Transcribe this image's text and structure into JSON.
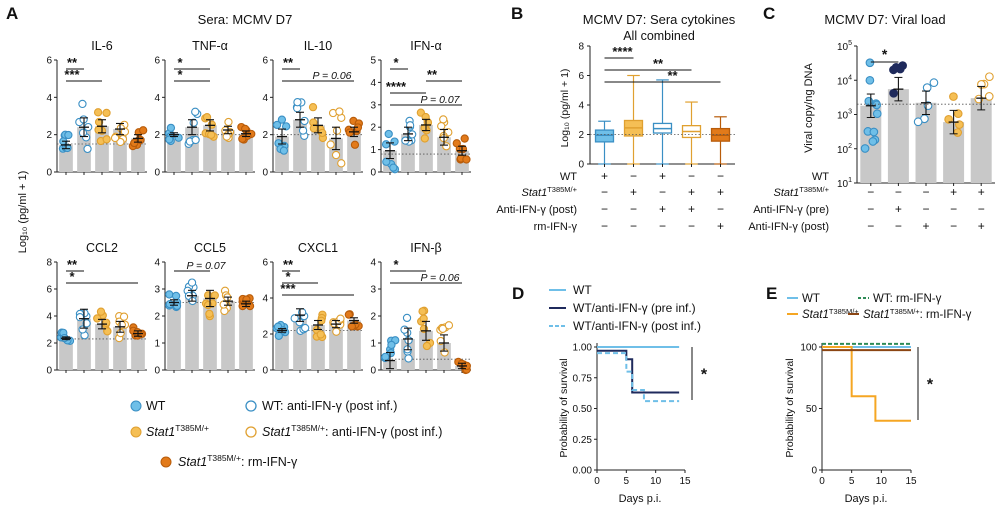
{
  "colors": {
    "wt": "#6fbfe8",
    "wt_edge": "#3a8fc4",
    "stat": "#f5bf55",
    "stat_edge": "#e0a030",
    "rm": "#e27a1a",
    "rm_edge": "#b85c0a",
    "pre": "#1f2a5c",
    "bar": "#c8c8c8",
    "stat_label": "#e05a2b",
    "wt_label": "#2a6fb0"
  },
  "panels": {
    "A": {
      "letter": "A",
      "title": "Sera: MCMV D7",
      "ylabel": "Log₁₀ (pg/ml + 1)"
    },
    "B": {
      "letter": "B",
      "title": "MCMV D7: Sera cytokines"
    },
    "C": {
      "letter": "C",
      "title": "MCMV D7: Viral load"
    },
    "D": {
      "letter": "D"
    },
    "E": {
      "letter": "E"
    }
  },
  "legend_a": {
    "wt": "WT",
    "wt_anti": "WT: anti-IFN-γ (post inf.)",
    "stat": "Stat1",
    "stat_sup": "T385M/+",
    "stat_anti": ": anti-IFN-γ (post inf.)",
    "stat_rm": ": rm-IFN-γ"
  },
  "conditions": {
    "rows": [
      "WT",
      "Stat1",
      "Anti-IFN-γ (post)",
      "rm-IFN-γ"
    ],
    "stat_sup": "T385M/+",
    "b_matrix": [
      [
        "+",
        "−",
        "+",
        "−",
        "−"
      ],
      [
        "−",
        "+",
        "−",
        "+",
        "+"
      ],
      [
        "−",
        "−",
        "+",
        "+",
        "−"
      ],
      [
        "−",
        "−",
        "−",
        "−",
        "+"
      ]
    ],
    "c_rows": [
      "WT",
      "Stat1",
      "Anti-IFN-γ (pre)",
      "Anti-IFN-γ (post)"
    ],
    "c_matrix": [
      [
        "+",
        "+",
        "+",
        "−",
        "−"
      ],
      [
        "−",
        "−",
        "−",
        "+",
        "+"
      ],
      [
        "−",
        "+",
        "−",
        "−",
        "−"
      ],
      [
        "−",
        "−",
        "+",
        "−",
        "+"
      ]
    ]
  },
  "legend_d": [
    "WT",
    "WT/anti-IFN-γ (pre inf.)",
    "WT/anti-IFN-γ (post inf.)"
  ],
  "legend_e": {
    "wt": "WT",
    "stat": "Stat1",
    "stat_sup": "T385M/+",
    "wt_rm": "WT: rm-IFN-γ",
    "stat_rm": ": rm-IFN-γ"
  },
  "chart_data": [
    {
      "type": "bar",
      "panel": "A",
      "title": "IL-6",
      "ylim": [
        0,
        6
      ],
      "yticks": [
        0,
        2,
        4,
        6
      ],
      "groups": [
        "WT",
        "WT: anti-IFN-γ",
        "Stat1 T385M/+",
        "Stat1 T385M/+: anti-IFN-γ",
        "Stat1 T385M/+: rm-IFN-γ"
      ],
      "values": [
        1.45,
        2.4,
        2.45,
        2.3,
        1.8
      ],
      "errors": [
        0.2,
        0.5,
        0.35,
        0.3,
        0.2
      ],
      "dotted": 1.5,
      "annotations": [
        {
          "text": "**",
          "from": 0,
          "to": 1
        },
        {
          "text": "***",
          "from": 0,
          "to": 2
        }
      ]
    },
    {
      "type": "bar",
      "panel": "A",
      "title": "TNF-α",
      "ylim": [
        0,
        6
      ],
      "yticks": [
        0,
        2,
        4,
        6
      ],
      "values": [
        2.0,
        2.4,
        2.5,
        2.25,
        2.05
      ],
      "errors": [
        0.1,
        0.4,
        0.3,
        0.2,
        0.15
      ],
      "dotted": 2.0,
      "annotations": [
        {
          "text": "*",
          "from": 0,
          "to": 2
        },
        {
          "text": "*",
          "from": 0,
          "to": 2
        }
      ]
    },
    {
      "type": "bar",
      "panel": "A",
      "title": "IL-10",
      "ylim": [
        0,
        6
      ],
      "yticks": [
        0,
        2,
        4,
        6
      ],
      "values": [
        1.9,
        2.8,
        2.5,
        1.8,
        2.15
      ],
      "errors": [
        0.4,
        0.4,
        0.4,
        0.6,
        0.25
      ],
      "dotted": 2.0,
      "annotations": [
        {
          "text": "**",
          "from": 0,
          "to": 1
        },
        {
          "text": "P = 0.06",
          "from": 0,
          "to": 4
        }
      ]
    },
    {
      "type": "bar",
      "panel": "A",
      "title": "IFN-α",
      "ylim": [
        0,
        5
      ],
      "yticks": [
        0,
        1,
        2,
        3,
        4,
        5
      ],
      "values": [
        0.95,
        1.7,
        2.1,
        1.55,
        0.95
      ],
      "errors": [
        0.35,
        0.3,
        0.25,
        0.35,
        0.2
      ],
      "dotted": 0.8,
      "annotations": [
        {
          "text": "*",
          "from": 0,
          "to": 1
        },
        {
          "text": "**",
          "from": 2,
          "to": 4
        },
        {
          "text": "****",
          "from": 0,
          "to": 2
        },
        {
          "text": "P = 0.07",
          "from": 0,
          "to": 4
        }
      ]
    },
    {
      "type": "bar",
      "panel": "A",
      "title": "CCL2",
      "ylim": [
        0,
        8
      ],
      "yticks": [
        0,
        2,
        4,
        6,
        8
      ],
      "values": [
        2.35,
        3.8,
        3.4,
        3.2,
        2.7
      ],
      "errors": [
        0.1,
        0.7,
        0.35,
        0.4,
        0.2
      ],
      "dotted": 2.3,
      "annotations": [
        {
          "text": "**",
          "from": 0,
          "to": 1
        },
        {
          "text": "*",
          "from": 0,
          "to": 4
        }
      ]
    },
    {
      "type": "bar",
      "panel": "A",
      "title": "CCL5",
      "ylim": [
        0,
        4
      ],
      "yticks": [
        0,
        1,
        2,
        3,
        4
      ],
      "values": [
        2.5,
        2.75,
        2.65,
        2.55,
        2.45
      ],
      "errors": [
        0.1,
        0.2,
        0.3,
        0.15,
        0.1
      ],
      "dotted": 2.5,
      "annotations": [
        {
          "text": "P = 0.07",
          "from": 0,
          "to": 2
        }
      ]
    },
    {
      "type": "bar",
      "panel": "A",
      "title": "CXCL1",
      "ylim": [
        0,
        6
      ],
      "yticks": [
        0,
        2,
        4,
        6
      ],
      "values": [
        2.2,
        3.05,
        2.5,
        2.55,
        2.75
      ],
      "errors": [
        0.1,
        0.35,
        0.25,
        0.2,
        0.15
      ],
      "dotted": 2.2,
      "annotations": [
        {
          "text": "**",
          "from": 0,
          "to": 1
        },
        {
          "text": "*",
          "from": 0,
          "to": 2
        },
        {
          "text": "***",
          "from": 0,
          "to": 4
        }
      ]
    },
    {
      "type": "bar",
      "panel": "A",
      "title": "IFN-β",
      "ylim": [
        0,
        4
      ],
      "yticks": [
        0,
        1,
        2,
        3,
        4
      ],
      "values": [
        0.35,
        1.15,
        1.45,
        1.0,
        0.15
      ],
      "errors": [
        0.3,
        0.4,
        0.35,
        0.3,
        0.1
      ],
      "dotted": 0.4,
      "annotations": [
        {
          "text": "*",
          "from": 0,
          "to": 2
        },
        {
          "text": "P = 0.06",
          "from": 0,
          "to": 4
        }
      ]
    },
    {
      "type": "box",
      "panel": "B",
      "subtitle": "All combined",
      "ylabel": "Log₁₀ (pg/ml + 1)",
      "ylim": [
        0,
        8
      ],
      "yticks": [
        0,
        2,
        4,
        6,
        8
      ],
      "boxes": [
        {
          "min": 0.0,
          "q1": 1.5,
          "median": 1.95,
          "q3": 2.3,
          "max": 2.9
        },
        {
          "min": 0.0,
          "q1": 1.9,
          "median": 2.45,
          "q3": 2.95,
          "max": 6.0
        },
        {
          "min": 0.0,
          "q1": 2.1,
          "median": 2.4,
          "q3": 2.75,
          "max": 5.7
        },
        {
          "min": 0.0,
          "q1": 1.8,
          "median": 2.2,
          "q3": 2.6,
          "max": 4.2
        },
        {
          "min": 0.0,
          "q1": 1.55,
          "median": 1.95,
          "q3": 2.4,
          "max": 3.2
        }
      ],
      "dotted": 2.0,
      "annotations": [
        {
          "text": "****",
          "from": 0,
          "to": 1
        },
        {
          "text": "**",
          "from": 0,
          "to": 3
        },
        {
          "text": "**",
          "from": 0,
          "to": 4
        }
      ]
    },
    {
      "type": "bar",
      "panel": "C",
      "scale": "log",
      "ylabel": "Viral copy/ng DNA",
      "ylim": [
        10,
        100000
      ],
      "ytick_exponents": [
        1,
        2,
        3,
        4,
        5
      ],
      "values": [
        1800,
        5500,
        2200,
        600,
        3000
      ],
      "dotted": 2000,
      "annotations": [
        {
          "text": "*",
          "from": 0,
          "to": 1
        }
      ]
    },
    {
      "type": "line",
      "panel": "D",
      "step": true,
      "ylabel": "Probability of survival",
      "xlabel": "Days p.i.",
      "xlim": [
        0,
        15
      ],
      "xticks": [
        0,
        5,
        10,
        15
      ],
      "ylim": [
        0,
        1
      ],
      "yticks": [
        0,
        0.25,
        0.5,
        0.75,
        1.0
      ],
      "series": [
        {
          "name": "WT",
          "x": [
            0,
            14
          ],
          "y": [
            1.0,
            1.0
          ]
        },
        {
          "name": "WT/anti-IFN-γ (pre inf.)",
          "x": [
            0,
            4,
            5,
            6,
            14
          ],
          "y": [
            0.97,
            0.97,
            0.9,
            0.63,
            0.63
          ]
        },
        {
          "name": "WT/anti-IFN-γ (post inf.)",
          "x": [
            0,
            4,
            5,
            6,
            8,
            14
          ],
          "y": [
            0.95,
            0.95,
            0.8,
            0.65,
            0.56,
            0.56
          ]
        }
      ],
      "annotations": [
        {
          "text": "*"
        }
      ]
    },
    {
      "type": "line",
      "panel": "E",
      "step": true,
      "ylabel": "Probability of survival",
      "xlabel": "Days p.i.",
      "xlim": [
        0,
        15
      ],
      "xticks": [
        0,
        5,
        10,
        15
      ],
      "ylim": [
        0,
        100
      ],
      "yticks": [
        0,
        50,
        100
      ],
      "series": [
        {
          "name": "WT",
          "x": [
            0,
            15
          ],
          "y": [
            100,
            100
          ]
        },
        {
          "name": "Stat1 T385M/+",
          "x": [
            0,
            5,
            9,
            15
          ],
          "y": [
            100,
            60,
            40,
            40
          ]
        },
        {
          "name": "WT: rm-IFN-γ",
          "x": [
            0,
            15
          ],
          "y": [
            102.5,
            102.5
          ]
        },
        {
          "name": "Stat1 T385M/+: rm-IFN-γ",
          "x": [
            0,
            15
          ],
          "y": [
            97.5,
            97.5
          ]
        }
      ],
      "annotations": [
        {
          "text": "*"
        }
      ]
    }
  ]
}
